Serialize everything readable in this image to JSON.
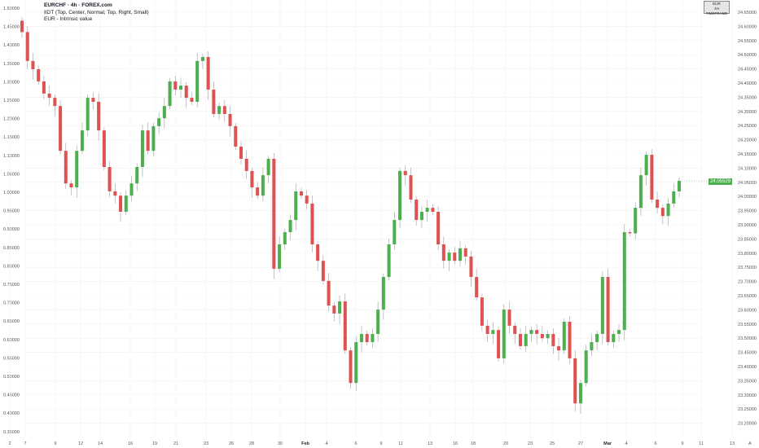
{
  "legend": {
    "title": "EURCHF · 4h · FOREX.com",
    "line2": "IIDT (Top, Center, Normal, Top, Right, Small)",
    "line3": "EUR - Intrinsic value"
  },
  "timeframe_box": {
    "line1": "EUR",
    "line2": "4H TIMEFRAME"
  },
  "price_tag": "24.05529",
  "colors": {
    "up": "#4caf50",
    "down": "#e05252",
    "wick": "#9e9e9e",
    "grid": "#f2f2f2",
    "axis_text": "#555555"
  },
  "chart_data": {
    "type": "candlestick",
    "left_axis": {
      "ticks": [
        "1.50000",
        "1.45000",
        "1.40000",
        "1.35000",
        "1.30000",
        "1.25000",
        "1.20000",
        "1.15000",
        "1.10000",
        "1.05000",
        "1.00000",
        "0.95000",
        "0.90000",
        "0.85000",
        "0.80000",
        "0.75000",
        "0.70000",
        "0.65000",
        "0.60000",
        "0.55000",
        "0.50000",
        "0.45000",
        "0.40000",
        "0.35000"
      ],
      "range": [
        0.35,
        1.5
      ]
    },
    "right_axis": {
      "ticks": [
        "24.65000",
        "24.60000",
        "24.55000",
        "24.50000",
        "24.45000",
        "24.40000",
        "24.35000",
        "24.30000",
        "24.25000",
        "24.20000",
        "24.15000",
        "24.10000",
        "24.05000",
        "24.00000",
        "23.95000",
        "23.90000",
        "23.85000",
        "23.80000",
        "23.75000",
        "23.70000",
        "23.65000",
        "23.60000",
        "23.55000",
        "23.50000",
        "23.45000",
        "23.40000",
        "23.35000",
        "23.30000",
        "23.25000",
        "23.20000"
      ],
      "range": [
        23.2,
        24.65
      ]
    },
    "x_ticks": [
      "2",
      "7",
      "9",
      "12",
      "14",
      "16",
      "19",
      "21",
      "23",
      "26",
      "28",
      "30",
      "Feb",
      "4",
      "6",
      "9",
      "11",
      "13",
      "16",
      "18",
      "20",
      "23",
      "25",
      "27",
      "Mar",
      "4",
      "6",
      "9",
      "11",
      "13"
    ],
    "auto_scale_label": "A",
    "first_open": 24.62,
    "closes": [
      24.58,
      24.478,
      24.449,
      24.406,
      24.363,
      24.348,
      24.319,
      24.161,
      24.046,
      24.032,
      24.161,
      24.233,
      24.348,
      24.334,
      24.233,
      24.104,
      24.018,
      24.003,
      23.946,
      24.003,
      24.046,
      24.104,
      24.233,
      24.161,
      24.248,
      24.276,
      24.319,
      24.406,
      24.377,
      24.391,
      24.348,
      24.334,
      24.478,
      24.492,
      24.377,
      24.291,
      24.319,
      24.291,
      24.248,
      24.176,
      24.133,
      24.09,
      24.032,
      24.003,
      24.075,
      24.133,
      23.745,
      23.831,
      23.874,
      23.917,
      24.018,
      24.003,
      23.975,
      23.831,
      23.773,
      23.702,
      23.615,
      23.587,
      23.63,
      23.457,
      23.342,
      23.486,
      23.515,
      23.486,
      23.515,
      23.601,
      23.716,
      23.831,
      23.917,
      24.09,
      24.075,
      23.989,
      23.917,
      23.946,
      23.96,
      23.946,
      23.831,
      23.773,
      23.802,
      23.773,
      23.817,
      23.788,
      23.716,
      23.644,
      23.544,
      23.515,
      23.529,
      23.429,
      23.601,
      23.544,
      23.515,
      23.472,
      23.515,
      23.529,
      23.515,
      23.5,
      23.515,
      23.472,
      23.457,
      23.558,
      23.429,
      23.27,
      23.342,
      23.457,
      23.486,
      23.515,
      23.716,
      23.486,
      23.515,
      23.529,
      23.874,
      23.87,
      23.96,
      24.075,
      24.147,
      23.989,
      23.96,
      23.931,
      23.975,
      24.018,
      24.055
    ]
  }
}
